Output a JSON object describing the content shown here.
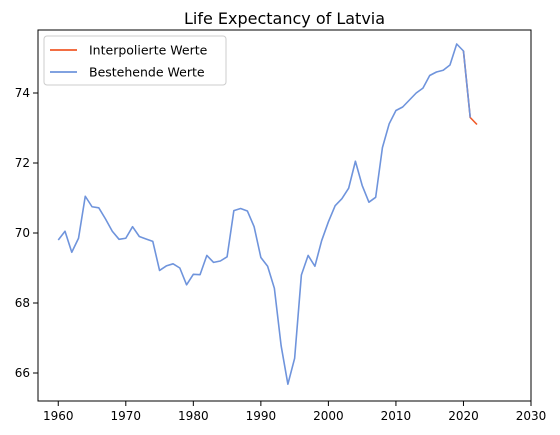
{
  "chart_data": {
    "type": "line",
    "title": "Life Expectancy of Latvia",
    "xlabel": "",
    "ylabel": "",
    "xlim": [
      1957,
      2030
    ],
    "ylim": [
      65.2,
      75.8
    ],
    "xticks": [
      1960,
      1970,
      1980,
      1990,
      2000,
      2010,
      2020,
      2030
    ],
    "yticks": [
      66,
      68,
      70,
      72,
      74
    ],
    "grid": false,
    "legend_position": "top-left",
    "series": [
      {
        "name": "Interpolierte Werte",
        "color": "#f05a28",
        "x": [
          2020,
          2021,
          2022
        ],
        "y": [
          75.2,
          73.3,
          73.1
        ]
      },
      {
        "name": "Bestehende Werte",
        "color": "#6f94dc",
        "x": [
          1960,
          1961,
          1962,
          1963,
          1964,
          1965,
          1966,
          1967,
          1968,
          1969,
          1970,
          1971,
          1972,
          1973,
          1974,
          1975,
          1976,
          1977,
          1978,
          1979,
          1980,
          1981,
          1982,
          1983,
          1984,
          1985,
          1986,
          1987,
          1988,
          1989,
          1990,
          1991,
          1992,
          1993,
          1994,
          1995,
          1996,
          1997,
          1998,
          1999,
          2000,
          2001,
          2002,
          2003,
          2004,
          2005,
          2006,
          2007,
          2008,
          2009,
          2010,
          2011,
          2012,
          2013,
          2014,
          2015,
          2016,
          2017,
          2018,
          2019,
          2020,
          2021
        ],
        "y": [
          69.8,
          70.05,
          69.45,
          69.85,
          71.05,
          70.75,
          70.72,
          70.4,
          70.05,
          69.82,
          69.85,
          70.18,
          69.9,
          69.83,
          69.76,
          68.93,
          69.06,
          69.12,
          69.0,
          68.52,
          68.82,
          68.81,
          69.36,
          69.16,
          69.2,
          69.32,
          70.64,
          70.7,
          70.63,
          70.18,
          69.3,
          69.05,
          68.42,
          66.78,
          65.68,
          66.42,
          68.8,
          69.36,
          69.05,
          69.78,
          70.32,
          70.78,
          70.98,
          71.28,
          72.05,
          71.36,
          70.88,
          71.02,
          72.44,
          73.12,
          73.5,
          73.6,
          73.8,
          74.0,
          74.14,
          74.5,
          74.6,
          74.65,
          74.8,
          75.4,
          75.2,
          73.3
        ]
      }
    ]
  }
}
